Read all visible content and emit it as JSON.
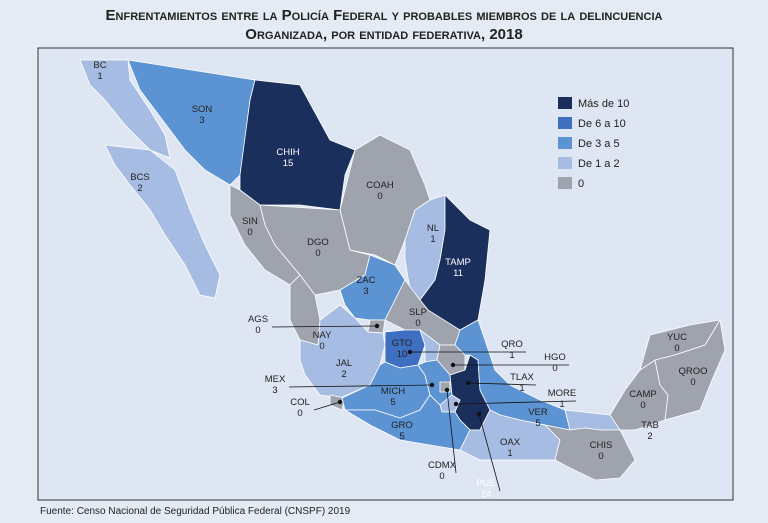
{
  "title_lines": [
    "Enfrentamientos entre la Policía Federal y probables miembros de la delincuencia",
    "Organizada, por entidad federativa, 2018"
  ],
  "legend": [
    {
      "label": "Más de 10",
      "color": "#1b2f5c"
    },
    {
      "label": "De 6 a 10",
      "color": "#3f6fc0"
    },
    {
      "label": "De 3 a 5",
      "color": "#5b93d3"
    },
    {
      "label": "De 1 a 2",
      "color": "#a7bce2"
    },
    {
      "label": "0",
      "color": "#9ea3ad"
    }
  ],
  "states": [
    {
      "name": "BC",
      "value": 1,
      "color": "#a7bce2"
    },
    {
      "name": "BCS",
      "value": 2,
      "color": "#a7bce2"
    },
    {
      "name": "SON",
      "value": 3,
      "color": "#5b93d3"
    },
    {
      "name": "CHIH",
      "value": 15,
      "color": "#1b2f5c"
    },
    {
      "name": "COAH",
      "value": 0,
      "color": "#9ea3ad"
    },
    {
      "name": "SIN",
      "value": 0,
      "color": "#9ea3ad"
    },
    {
      "name": "DGO",
      "value": 0,
      "color": "#9ea3ad"
    },
    {
      "name": "NL",
      "value": 1,
      "color": "#a7bce2"
    },
    {
      "name": "TAMP",
      "value": 11,
      "color": "#1b2f5c"
    },
    {
      "name": "ZAC",
      "value": 3,
      "color": "#5b93d3"
    },
    {
      "name": "SLP",
      "value": 0,
      "color": "#9ea3ad"
    },
    {
      "name": "NAY",
      "value": 0,
      "color": "#9ea3ad"
    },
    {
      "name": "AGS",
      "value": 0,
      "color": "#9ea3ad"
    },
    {
      "name": "JAL",
      "value": 2,
      "color": "#a7bce2"
    },
    {
      "name": "COL",
      "value": 0,
      "color": "#9ea3ad"
    },
    {
      "name": "GTO",
      "value": 10,
      "color": "#3f6fc0"
    },
    {
      "name": "QRO",
      "value": 1,
      "color": "#a7bce2"
    },
    {
      "name": "HGO",
      "value": 0,
      "color": "#9ea3ad"
    },
    {
      "name": "MICH",
      "value": 5,
      "color": "#5b93d3"
    },
    {
      "name": "MEX",
      "value": 3,
      "color": "#5b93d3"
    },
    {
      "name": "CDMX",
      "value": 0,
      "color": "#9ea3ad"
    },
    {
      "name": "TLAX",
      "value": 1,
      "color": "#a7bce2"
    },
    {
      "name": "MORE",
      "value": 1,
      "color": "#a7bce2"
    },
    {
      "name": "PUE",
      "value": 24,
      "color": "#1b2f5c"
    },
    {
      "name": "GRO",
      "value": 5,
      "color": "#5b93d3"
    },
    {
      "name": "VER",
      "value": 5,
      "color": "#5b93d3"
    },
    {
      "name": "OAX",
      "value": 1,
      "color": "#a7bce2"
    },
    {
      "name": "TAB",
      "value": 2,
      "color": "#a7bce2"
    },
    {
      "name": "CHIS",
      "value": 0,
      "color": "#9ea3ad"
    },
    {
      "name": "CAMP",
      "value": 0,
      "color": "#9ea3ad"
    },
    {
      "name": "YUC",
      "value": 0,
      "color": "#9ea3ad"
    },
    {
      "name": "QROO",
      "value": 0,
      "color": "#9ea3ad"
    }
  ],
  "source": "Fuente: Censo Nacional de Seguridad Pública Federal (CNSPF) 2019"
}
